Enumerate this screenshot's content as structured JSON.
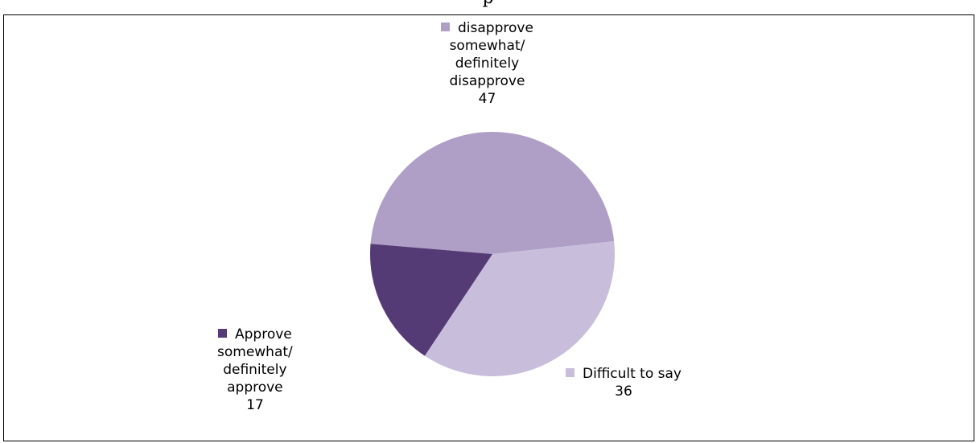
{
  "header_fragment": "p",
  "chart_data": {
    "type": "pie",
    "slices": [
      {
        "lines": [
          "disapprove",
          "somewhat/",
          "definitely",
          "disapprove"
        ],
        "value": 47,
        "color": "#af9fc7"
      },
      {
        "lines": [
          "Difficult to say"
        ],
        "value": 36,
        "color": "#c8bedb"
      },
      {
        "lines": [
          "Approve",
          "somewhat/",
          "definitely",
          "approve"
        ],
        "value": 17,
        "color": "#553b75"
      }
    ]
  }
}
